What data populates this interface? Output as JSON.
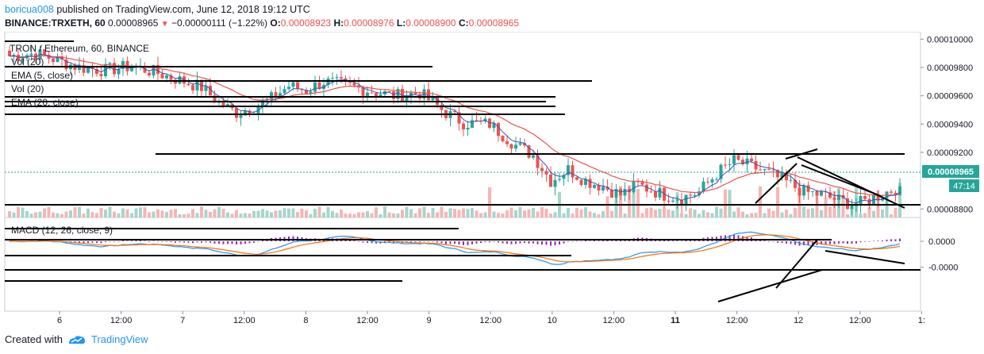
{
  "header": {
    "user": "boricua008",
    "text": " published on TradingView.com, June 12, 2018 19:12 UTC"
  },
  "symbol_line": {
    "symbol": "BINANCE:TRXETH, 60",
    "price": "0.00008965",
    "change": "−0.00000111 (−1.22%)",
    "o_label": "O:",
    "o": "0.00008923",
    "h_label": "H:",
    "h": "0.00008976",
    "l_label": "L:",
    "l": "0.00008900",
    "c_label": "C:",
    "c": "0.00008965"
  },
  "legend": {
    "title": "TRON / Ethereum, 60, BINANCE",
    "vol1": "Vol (20)",
    "ema1": "EMA (5, close)",
    "vol2": "Vol (20)",
    "ema2": "EMA (20, close)",
    "macd": "MACD (12, 26, close, 9)"
  },
  "price_badge": "0.00008965",
  "countdown_badge": "47:14",
  "colors": {
    "up": "#26a69a",
    "down": "#ef5350",
    "ema5": "#3f51b5",
    "ema20": "#ef5350",
    "macd": "#2196f3",
    "signal": "#ff6d00",
    "hist": "#9c27b0",
    "accent": "#2196f3"
  },
  "footer": {
    "created": "Created with",
    "brand": "TradingView"
  },
  "chart_data": {
    "type": "candlestick",
    "price_axis": {
      "ticks": [
        "0.00010000",
        "0.00009800",
        "0.00009600",
        "0.00009400",
        "0.00009200",
        "0.00008800"
      ],
      "range": [
        8.74e-05,
        0.0001003
      ]
    },
    "macd_axis": {
      "ticks": [
        "0.0000",
        "-0.0000"
      ]
    },
    "time_axis": {
      "ticks": [
        "6",
        "12:00",
        "7",
        "12:00",
        "8",
        "12:00",
        "9",
        "12:00",
        "10",
        "12:00",
        "11",
        "12:00",
        "12",
        "12:00",
        "1:"
      ]
    },
    "close_path": [
      [
        0,
        9.88e-05
      ],
      [
        6,
        9.9e-05
      ],
      [
        10,
        9.86e-05
      ],
      [
        16,
        9.8e-05
      ],
      [
        22,
        9.78e-05
      ],
      [
        28,
        9.81e-05
      ],
      [
        34,
        9.76e-05
      ],
      [
        40,
        9.7e-05
      ],
      [
        44,
        9.66e-05
      ],
      [
        48,
        9.55e-05
      ],
      [
        52,
        9.48e-05
      ],
      [
        56,
        9.52e-05
      ],
      [
        60,
        9.58e-05
      ],
      [
        64,
        9.67e-05
      ],
      [
        68,
        9.64e-05
      ],
      [
        72,
        9.7e-05
      ],
      [
        76,
        9.68e-05
      ],
      [
        82,
        9.64e-05
      ],
      [
        88,
        9.6e-05
      ],
      [
        94,
        9.62e-05
      ],
      [
        100,
        9.48e-05
      ],
      [
        104,
        9.41e-05
      ],
      [
        110,
        9.4e-05
      ],
      [
        116,
        9.25e-05
      ],
      [
        120,
        9.18e-05
      ],
      [
        124,
        9e-05
      ],
      [
        128,
        9.08e-05
      ],
      [
        132,
        9e-05
      ],
      [
        136,
        8.96e-05
      ],
      [
        140,
        8.9e-05
      ],
      [
        144,
        8.97e-05
      ],
      [
        150,
        8.9e-05
      ],
      [
        154,
        8.88e-05
      ],
      [
        158,
        8.92e-05
      ],
      [
        162,
        9.05e-05
      ],
      [
        166,
        9.14e-05
      ],
      [
        170,
        9.1e-05
      ],
      [
        174,
        9.05e-05
      ],
      [
        178,
        8.99e-05
      ],
      [
        182,
        8.92e-05
      ],
      [
        186,
        8.9e-05
      ],
      [
        190,
        8.86e-05
      ],
      [
        194,
        8.83e-05
      ],
      [
        198,
        8.88e-05
      ],
      [
        201,
        8.92e-05
      ],
      [
        204,
        8.96e-05
      ]
    ]
  }
}
